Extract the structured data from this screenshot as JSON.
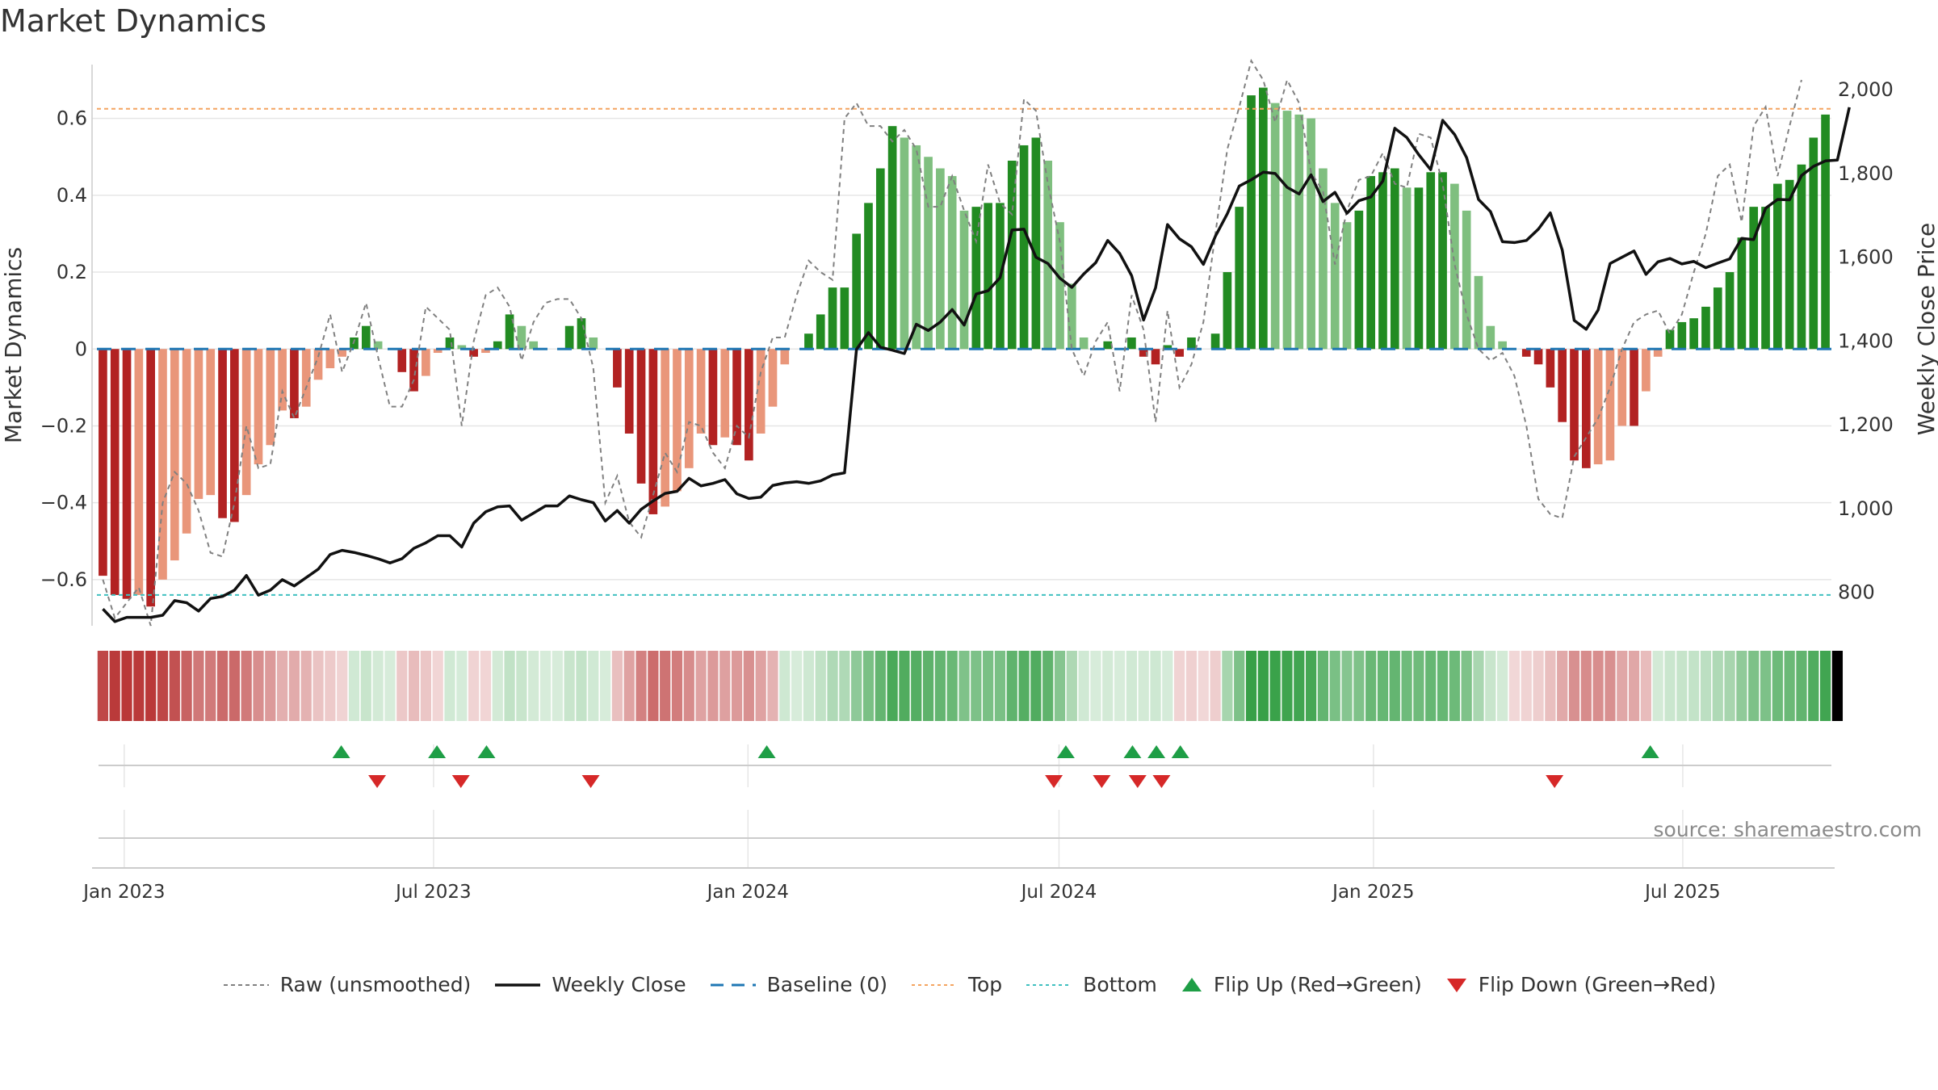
{
  "page": {
    "title": "Market Dynamics",
    "source": "source: sharemaestro.com"
  },
  "legend": [
    {
      "key": "raw",
      "label": "Raw (unsmoothed)"
    },
    {
      "key": "close",
      "label": "Weekly Close"
    },
    {
      "key": "baseline",
      "label": "Baseline (0)"
    },
    {
      "key": "top",
      "label": "Top"
    },
    {
      "key": "bottom",
      "label": "Bottom"
    },
    {
      "key": "flip_up",
      "label": "Flip Up (Red→Green)"
    },
    {
      "key": "flip_down",
      "label": "Flip Down (Green→Red)"
    }
  ],
  "colors": {
    "bar_pos_strong": "#228b22",
    "bar_pos_weak": "#7fbf7f",
    "bar_neg_strong": "#b22222",
    "bar_neg_weak": "#e9967a",
    "raw_line": "#808080",
    "close_line": "#111111",
    "baseline": "#1f77b4",
    "top": "#f4a460",
    "bottom": "#40c0c0",
    "flip_up": "#1e9e46",
    "flip_down": "#d62828",
    "grid": "#e6e6e6",
    "axis_text": "#333333"
  },
  "chart_data": {
    "type": "bar",
    "title": "Market Dynamics",
    "ylabel": "Market Dynamics",
    "y2label": "Weekly Close Price",
    "ylim": [
      -0.72,
      0.74
    ],
    "y2lim": [
      720,
      2060
    ],
    "yticks": [
      -0.6,
      -0.4,
      -0.2,
      0,
      0.2,
      0.4,
      0.6
    ],
    "ytick_labels": [
      "−0.6",
      "−0.4",
      "−0.2",
      "0",
      "0.2",
      "0.4",
      "0.6"
    ],
    "y2ticks": [
      800,
      1000,
      1200,
      1400,
      1600,
      1800,
      2000
    ],
    "y2tick_labels": [
      "800",
      "1,000",
      "1,200",
      "1,400",
      "1,600",
      "1,800",
      "2,000"
    ],
    "start_date": "2022-12-16",
    "x_tick_labels": [
      {
        "date": "2023-01-01",
        "label": "Jan 2023"
      },
      {
        "date": "2023-07-01",
        "label": "Jul 2023"
      },
      {
        "date": "2024-01-01",
        "label": "Jan 2024"
      },
      {
        "date": "2024-07-01",
        "label": "Jul 2024"
      },
      {
        "date": "2025-01-01",
        "label": "Jan 2025"
      },
      {
        "date": "2025-07-01",
        "label": "Jul 2025"
      }
    ],
    "top_level": 0.625,
    "bottom_level": -0.64,
    "baseline": 0,
    "grid": true,
    "legend_position": "bottom",
    "series": [
      {
        "name": "Market Dynamics",
        "values": [
          -0.59,
          -0.64,
          -0.65,
          -0.64,
          -0.67,
          -0.6,
          -0.55,
          -0.48,
          -0.39,
          -0.38,
          -0.44,
          -0.45,
          -0.38,
          -0.3,
          -0.25,
          -0.16,
          -0.18,
          -0.15,
          -0.08,
          -0.05,
          -0.02,
          0.03,
          0.06,
          0.02,
          0.0,
          -0.06,
          -0.11,
          -0.07,
          -0.01,
          0.03,
          0.01,
          -0.02,
          -0.01,
          0.02,
          0.09,
          0.06,
          0.02,
          0.0,
          0.0,
          0.06,
          0.08,
          0.03,
          0.0,
          -0.1,
          -0.22,
          -0.35,
          -0.43,
          -0.41,
          -0.37,
          -0.31,
          -0.22,
          -0.25,
          -0.23,
          -0.25,
          -0.29,
          -0.22,
          -0.15,
          -0.04,
          0.0,
          0.04,
          0.09,
          0.16,
          0.16,
          0.3,
          0.38,
          0.47,
          0.58,
          0.55,
          0.53,
          0.5,
          0.47,
          0.45,
          0.36,
          0.37,
          0.38,
          0.38,
          0.49,
          0.53,
          0.55,
          0.49,
          0.33,
          0.17,
          0.03,
          0.0,
          0.02,
          0.0,
          0.03,
          -0.02,
          -0.04,
          0.01,
          -0.02,
          0.03,
          0.0,
          0.04,
          0.2,
          0.37,
          0.66,
          0.68,
          0.64,
          0.62,
          0.61,
          0.6,
          0.47,
          0.38,
          0.33,
          0.36,
          0.45,
          0.46,
          0.47,
          0.42,
          0.42,
          0.46,
          0.46,
          0.43,
          0.36,
          0.19,
          0.06,
          0.02,
          0.0,
          -0.02,
          -0.04,
          -0.1,
          -0.19,
          -0.29,
          -0.31,
          -0.3,
          -0.29,
          -0.2,
          -0.2,
          -0.11,
          -0.02,
          0.05,
          0.07,
          0.08,
          0.11,
          0.16,
          0.2,
          0.29,
          0.37,
          0.37,
          0.43,
          0.44,
          0.48,
          0.55,
          0.61
        ]
      },
      {
        "name": "Raw (unsmoothed)",
        "values": [
          -0.6,
          -0.7,
          -0.66,
          -0.62,
          -0.72,
          -0.4,
          -0.32,
          -0.35,
          -0.42,
          -0.53,
          -0.54,
          -0.4,
          -0.2,
          -0.31,
          -0.3,
          -0.11,
          -0.18,
          -0.1,
          -0.02,
          0.09,
          -0.06,
          0.02,
          0.12,
          -0.02,
          -0.15,
          -0.15,
          -0.08,
          0.11,
          0.08,
          0.05,
          -0.2,
          0.02,
          0.14,
          0.16,
          0.11,
          -0.03,
          0.07,
          0.12,
          0.13,
          0.13,
          0.08,
          -0.05,
          -0.4,
          -0.33,
          -0.45,
          -0.49,
          -0.38,
          -0.27,
          -0.32,
          -0.19,
          -0.2,
          -0.27,
          -0.31,
          -0.2,
          -0.23,
          -0.06,
          0.03,
          0.03,
          0.14,
          0.23,
          0.2,
          0.18,
          0.6,
          0.64,
          0.58,
          0.58,
          0.54,
          0.57,
          0.52,
          0.37,
          0.37,
          0.45,
          0.36,
          0.28,
          0.48,
          0.38,
          0.35,
          0.65,
          0.62,
          0.43,
          0.28,
          0.0,
          -0.07,
          0.02,
          0.07,
          -0.11,
          0.14,
          0.05,
          -0.19,
          0.1,
          -0.1,
          -0.04,
          0.07,
          0.3,
          0.52,
          0.63,
          0.75,
          0.7,
          0.59,
          0.7,
          0.64,
          0.46,
          0.41,
          0.22,
          0.36,
          0.44,
          0.45,
          0.51,
          0.43,
          0.42,
          0.56,
          0.55,
          0.43,
          0.22,
          0.09,
          0.0,
          -0.03,
          -0.01,
          -0.07,
          -0.2,
          -0.39,
          -0.43,
          -0.44,
          -0.28,
          -0.23,
          -0.18,
          -0.1,
          0.0,
          0.07,
          0.09,
          0.1,
          0.04,
          0.09,
          0.2,
          0.3,
          0.45,
          0.48,
          0.33,
          0.58,
          0.63,
          0.45,
          0.58,
          0.7
        ]
      },
      {
        "name": "Weekly Close",
        "values": [
          760,
          730,
          740,
          740,
          740,
          745,
          780,
          775,
          755,
          785,
          790,
          805,
          840,
          793,
          805,
          830,
          815,
          835,
          855,
          890,
          900,
          895,
          888,
          880,
          870,
          880,
          905,
          918,
          935,
          935,
          908,
          965,
          992,
          1004,
          1006,
          972,
          989,
          1006,
          1006,
          1030,
          1021,
          1014,
          970,
          995,
          965,
          998,
          1018,
          1036,
          1041,
          1072,
          1054,
          1060,
          1069,
          1035,
          1024,
          1027,
          1055,
          1061,
          1064,
          1060,
          1066,
          1080,
          1085,
          1380,
          1420,
          1385,
          1378,
          1370,
          1440,
          1425,
          1445,
          1475,
          1438,
          1512,
          1520,
          1551,
          1665,
          1667,
          1600,
          1585,
          1550,
          1528,
          1560,
          1587,
          1640,
          1609,
          1556,
          1450,
          1527,
          1678,
          1644,
          1625,
          1583,
          1650,
          1704,
          1770,
          1785,
          1803,
          1800,
          1767,
          1751,
          1797,
          1733,
          1755,
          1705,
          1735,
          1744,
          1782,
          1908,
          1886,
          1845,
          1809,
          1927,
          1893,
          1838,
          1738,
          1709,
          1637,
          1635,
          1640,
          1667,
          1706,
          1617,
          1449,
          1428,
          1474,
          1585,
          1600,
          1615,
          1559,
          1589,
          1597,
          1584,
          1590,
          1575,
          1586,
          1596,
          1645,
          1642,
          1717,
          1738,
          1737,
          1795,
          1817,
          1830,
          1832,
          1958
        ]
      },
      {
        "name": "Flip Up (Red→Green)",
        "dates": [
          "2023-05-08",
          "2023-07-03",
          "2023-08-01",
          "2024-01-12",
          "2024-07-05",
          "2024-08-13",
          "2024-08-27",
          "2024-09-10",
          "2025-06-12"
        ]
      },
      {
        "name": "Flip Down (Green→Red)",
        "dates": [
          "2023-05-29",
          "2023-07-17",
          "2023-10-01",
          "2024-06-28",
          "2024-07-26",
          "2024-08-16",
          "2024-08-30",
          "2025-04-17"
        ]
      }
    ],
    "regime_strip": {
      "signs": [
        -1,
        -1,
        -1,
        -1,
        -1,
        -1,
        -1,
        -1,
        -1,
        -1,
        -1,
        -1,
        -1,
        -1,
        -1,
        -1,
        -1,
        -1,
        -1,
        -1,
        -1,
        1,
        1,
        1,
        1,
        -1,
        -1,
        -1,
        -1,
        1,
        1,
        -1,
        -1,
        1,
        1,
        1,
        1,
        1,
        1,
        1,
        1,
        1,
        1,
        -1,
        -1,
        -1,
        -1,
        -1,
        -1,
        -1,
        -1,
        -1,
        -1,
        -1,
        -1,
        -1,
        -1,
        1,
        1,
        1,
        1,
        1,
        1,
        1,
        1,
        1,
        1,
        1,
        1,
        1,
        1,
        1,
        1,
        1,
        1,
        1,
        1,
        1,
        1,
        1,
        1,
        1,
        1,
        1,
        1,
        1,
        1,
        1,
        1,
        1,
        -1,
        -1,
        -1,
        -1,
        1,
        1,
        1,
        1,
        1,
        1,
        1,
        1,
        1,
        1,
        1,
        1,
        1,
        1,
        1,
        1,
        1,
        1,
        1,
        1,
        1,
        1,
        1,
        1,
        -1,
        -1,
        -1,
        -1,
        -1,
        -1,
        -1,
        -1,
        -1,
        -1,
        -1,
        -1,
        1,
        1,
        1,
        1,
        1,
        1,
        1,
        1,
        1,
        1,
        1,
        1,
        1,
        1,
        1,
        1
      ]
    }
  }
}
